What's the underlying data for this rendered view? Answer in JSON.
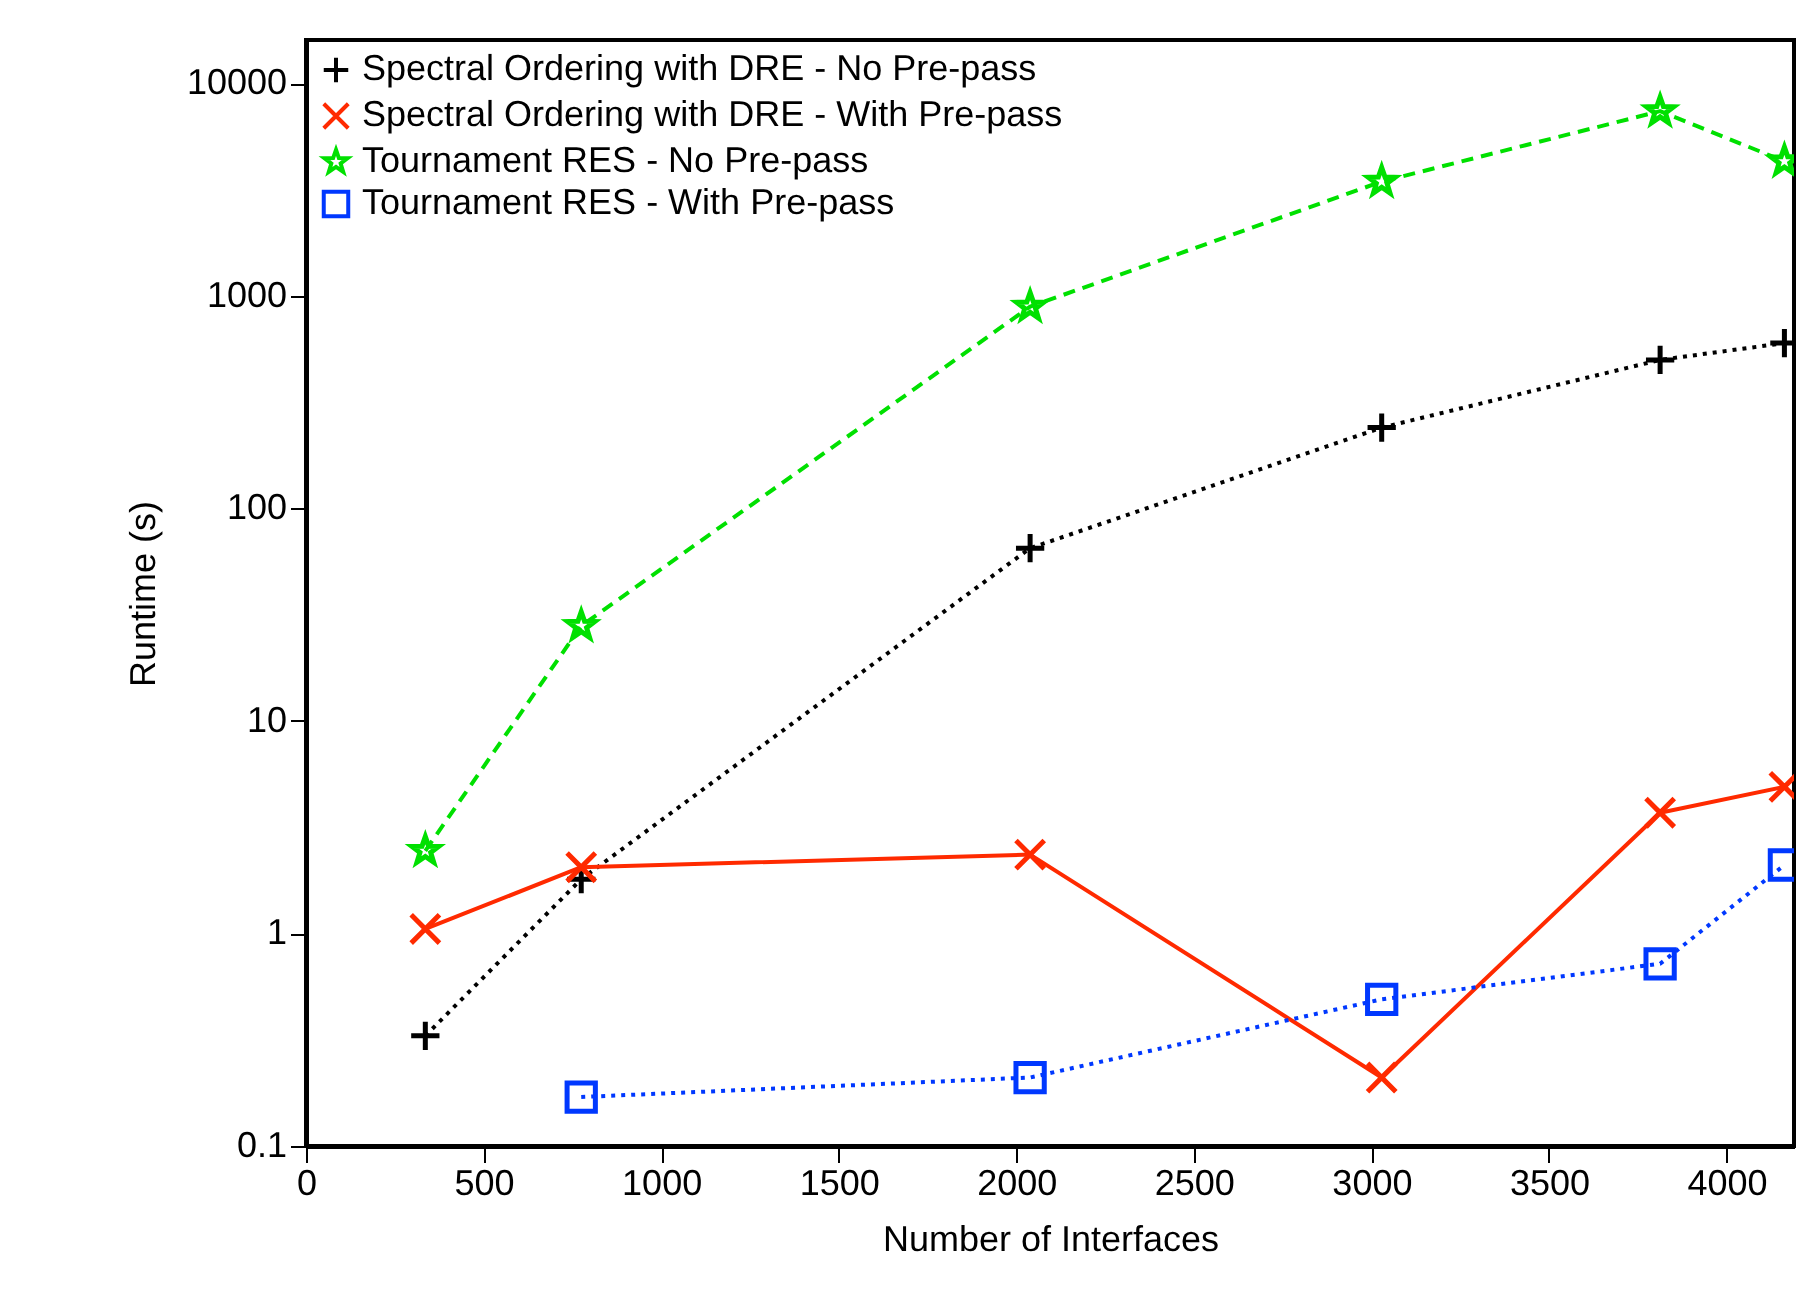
{
  "chart_data": {
    "type": "line",
    "xlabel": "Number of Interfaces",
    "ylabel": "Runtime (s)",
    "x": [
      336,
      775,
      2039,
      3029,
      3813,
      4163
    ],
    "xlim": [
      0,
      4190
    ],
    "xticks": [
      0,
      500,
      1000,
      1500,
      2000,
      2500,
      3000,
      3500,
      4000
    ],
    "ylim": [
      0.1,
      16000
    ],
    "yticks": [
      0.1,
      1,
      10,
      100,
      1000,
      10000
    ],
    "log": "y",
    "grid": false,
    "legend": "top left",
    "series": [
      {
        "name": "Spectral Ordering with DRE - No Pre-pass",
        "color": "#000000",
        "marker": "cross",
        "line_style": "dotted",
        "values": [
          0.33,
          1.8,
          65,
          240,
          500,
          600
        ]
      },
      {
        "name": "Spectral Ordering with DRE - With Pre-pass",
        "color": "#ff2a00",
        "marker": "x",
        "line_style": "solid",
        "values": [
          1.05,
          2.05,
          2.35,
          0.21,
          3.7,
          4.9
        ]
      },
      {
        "name": "Tournament RES - No Pre-pass",
        "color": "#00e000",
        "marker": "star",
        "line_style": "dashed",
        "values": [
          2.45,
          28,
          890,
          3450,
          7400,
          4300
        ]
      },
      {
        "name": "Tournament RES - With Pre-pass",
        "color": "#0038ff",
        "marker": "square",
        "line_style": "dotted",
        "values": [
          null,
          0.17,
          0.21,
          0.49,
          0.72,
          2.1
        ]
      }
    ]
  }
}
